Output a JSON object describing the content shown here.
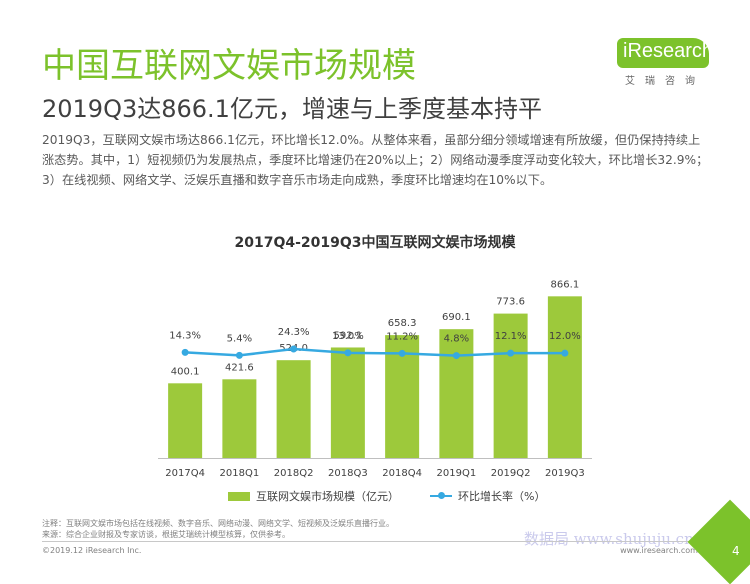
{
  "header": {
    "title": "中国互联网文娱市场规模",
    "subtitle": "2019Q3达866.1亿元，增速与上季度基本持平",
    "description": "2019Q3，互联网文娱市场达866.1亿元，环比增长12.0%。从整体来看，虽部分细分领域增速有所放缓，但仍保持持续上涨态势。其中，1）短视频仍为发展热点，季度环比增速仍在20%以上；2）网络动漫季度浮动变化较大，环比增长32.9%；3）在线视频、网络文学、泛娱乐直播和数字音乐市场走向成熟，季度环比增速均在10%以下。"
  },
  "logo": {
    "name": "iResearch",
    "subtitle": "艾瑞咨询"
  },
  "chart_data": {
    "type": "bar",
    "title": "2017Q4-2019Q3中国互联网文娱市场规模",
    "categories": [
      "2017Q4",
      "2018Q1",
      "2018Q2",
      "2018Q3",
      "2018Q4",
      "2019Q1",
      "2019Q2",
      "2019Q3"
    ],
    "series": [
      {
        "name": "互联网文娱市场规模（亿元）",
        "type": "bar",
        "color": "#9dc93b",
        "values": [
          400.1,
          421.6,
          524.0,
          592.1,
          658.3,
          690.1,
          773.6,
          866.1
        ],
        "labels": [
          "400.1",
          "421.6",
          "524.0",
          "592.1",
          "658.3",
          "690.1",
          "773.6",
          "866.1"
        ]
      },
      {
        "name": "环比增长率（%）",
        "type": "line",
        "color": "#36a9e1",
        "values": [
          14.3,
          5.4,
          24.3,
          13.0,
          11.2,
          4.8,
          12.1,
          12.0
        ],
        "labels": [
          "14.3%",
          "5.4%",
          "24.3%",
          "13.0%",
          "11.2%",
          "4.8%",
          "12.1%",
          "12.0%"
        ]
      }
    ],
    "bar_ylim": [
      0,
      900
    ],
    "line_ylim": [
      -300,
      200
    ],
    "legend_position": "bottom",
    "grid": false
  },
  "notes": {
    "line1": "注释：互联网文娱市场包括在线视频、数字音乐、网络动漫、网络文学、短视频及泛娱乐直播行业。",
    "line2": "来源：综合企业财报及专家访谈，根据艾瑞统计模型核算，仅供参考。"
  },
  "footer": {
    "copyright": "©2019.12 iResearch Inc.",
    "website": "www.iresearch.com.cn",
    "page": "4"
  },
  "watermark": "数据局 www.shujuju.cn"
}
